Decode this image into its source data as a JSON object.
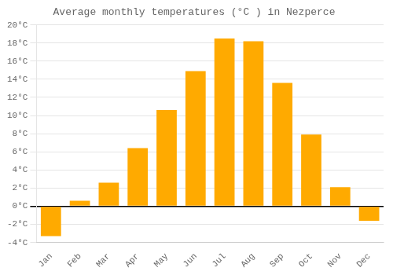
{
  "chart_data": {
    "type": "bar",
    "title": "Average monthly temperatures (°C ) in Nezperce",
    "categories": [
      "Jan",
      "Feb",
      "Mar",
      "Apr",
      "May",
      "Jun",
      "Jul",
      "Aug",
      "Sep",
      "Oct",
      "Nov",
      "Dec"
    ],
    "values": [
      -3.3,
      0.6,
      2.6,
      6.4,
      10.6,
      14.9,
      18.5,
      18.2,
      13.6,
      7.9,
      2.1,
      -1.6
    ],
    "color": "#FFAA00",
    "ylim": [
      -4,
      20
    ],
    "yticks": [
      {
        "value": -4,
        "label": "-4°C"
      },
      {
        "value": -2,
        "label": "-2°C"
      },
      {
        "value": 0,
        "label": "0°C"
      },
      {
        "value": 2,
        "label": "2°C"
      },
      {
        "value": 4,
        "label": "4°C"
      },
      {
        "value": 6,
        "label": "6°C"
      },
      {
        "value": 8,
        "label": "8°C"
      },
      {
        "value": 10,
        "label": "10°C"
      },
      {
        "value": 12,
        "label": "12°C"
      },
      {
        "value": 14,
        "label": "14°C"
      },
      {
        "value": 16,
        "label": "16°C"
      },
      {
        "value": 18,
        "label": "18°C"
      },
      {
        "value": 20,
        "label": "20°C"
      }
    ],
    "grid": true
  }
}
